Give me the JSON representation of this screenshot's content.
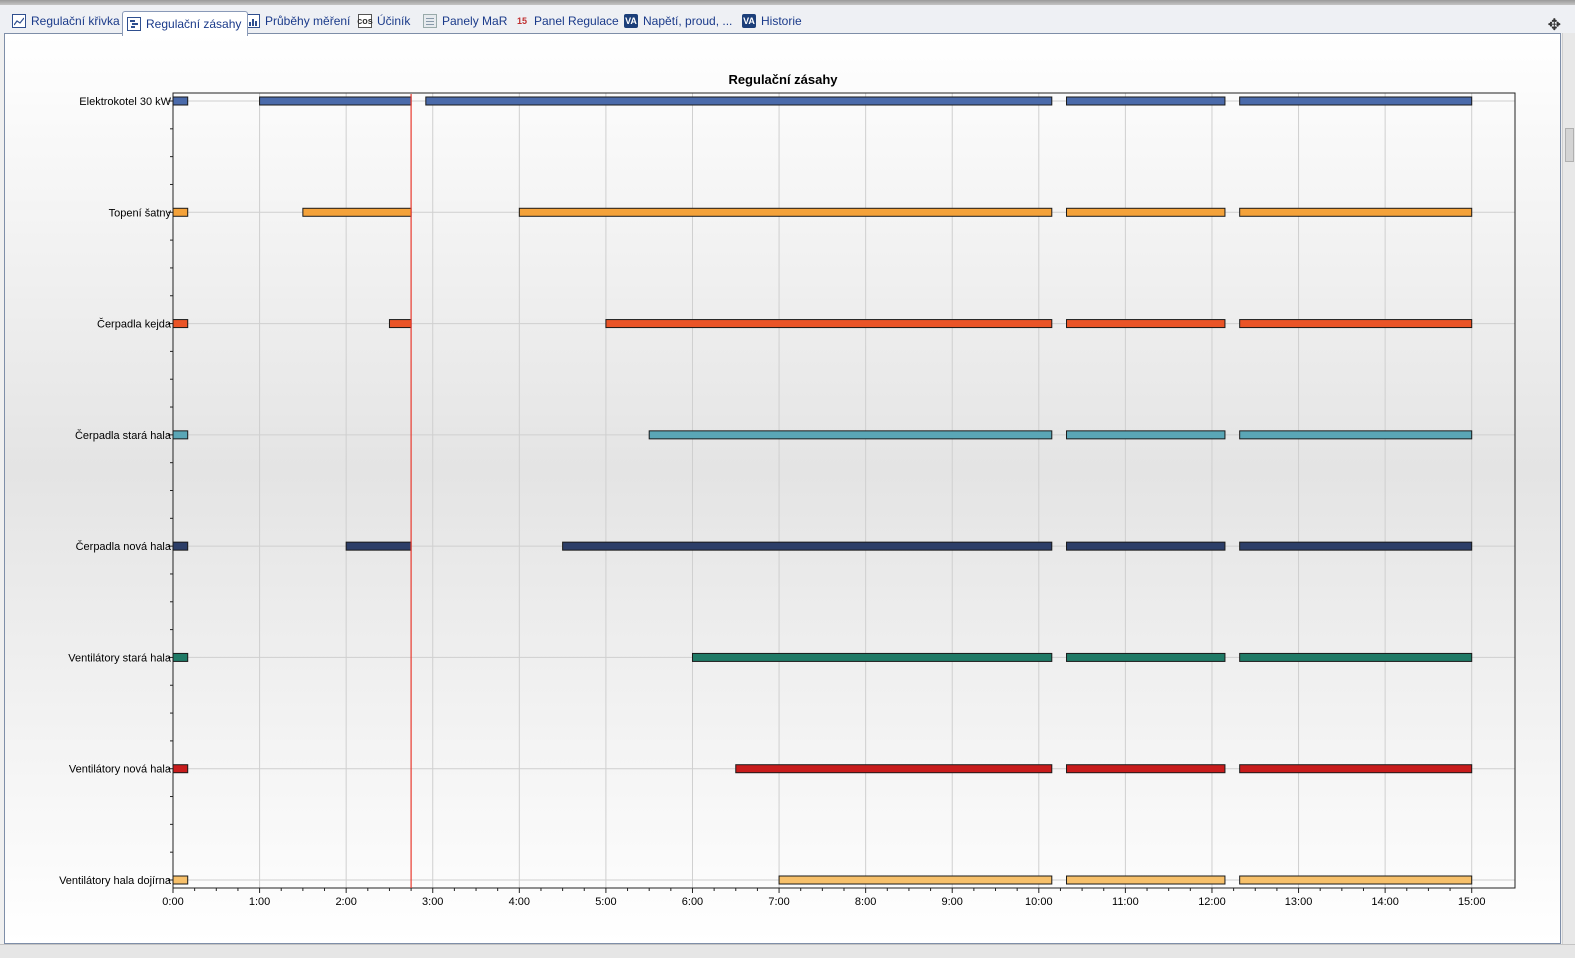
{
  "tabs": [
    {
      "label": "Regulační křivka",
      "icon": "line-chart-icon",
      "active": false
    },
    {
      "label": "Regulační zásahy",
      "icon": "gantt-chart-icon",
      "active": true
    },
    {
      "label": "Průběhy měření",
      "icon": "measurement-chart-icon",
      "active": false
    },
    {
      "label": "Účiník",
      "icon": "cos-phi-icon",
      "active": false
    },
    {
      "label": "Panely MaR",
      "icon": "panel-icon",
      "active": false
    },
    {
      "label": "Panel Regulace",
      "icon": "number-15-icon",
      "active": false
    },
    {
      "label": "Napětí, proud, ...",
      "icon": "va-icon",
      "active": false
    },
    {
      "label": "Historie",
      "icon": "va-icon",
      "active": false
    }
  ],
  "chart_data": {
    "type": "gantt",
    "title": "Regulační zásahy",
    "x_unit": "hours",
    "xlim": [
      0,
      15.5
    ],
    "x_ticks": [
      "0:00",
      "1:00",
      "2:00",
      "3:00",
      "4:00",
      "5:00",
      "6:00",
      "7:00",
      "8:00",
      "9:00",
      "10:00",
      "11:00",
      "12:00",
      "13:00",
      "14:00",
      "15:00"
    ],
    "current_time_marker": 2.75,
    "marker_color": "#e83a2e",
    "grid": true,
    "categories": [
      "Elektrokotel 30 kW",
      "Topení šatny",
      "Čerpadla kejda",
      "Čerpadla stará hala",
      "Čerpadla nová hala",
      "Ventilátory stará hala",
      "Ventilátory nová hala",
      "Ventilátory hala dojírna"
    ],
    "series": [
      {
        "category": "Elektrokotel 30 kW",
        "color": "#4a6aaa",
        "intervals": [
          [
            0,
            0.17
          ],
          [
            1.0,
            2.75
          ],
          [
            2.92,
            10.15
          ],
          [
            10.32,
            12.15
          ],
          [
            12.32,
            15.0
          ]
        ]
      },
      {
        "category": "Topení šatny",
        "color": "#f4a23a",
        "intervals": [
          [
            0,
            0.17
          ],
          [
            1.5,
            2.75
          ],
          [
            4.0,
            10.15
          ],
          [
            10.32,
            12.15
          ],
          [
            12.32,
            15.0
          ]
        ]
      },
      {
        "category": "Čerpadla kejda",
        "color": "#ea5427",
        "intervals": [
          [
            0,
            0.17
          ],
          [
            2.5,
            2.75
          ],
          [
            5.0,
            10.15
          ],
          [
            10.32,
            12.15
          ],
          [
            12.32,
            15.0
          ]
        ]
      },
      {
        "category": "Čerpadla stará hala",
        "color": "#5aa6b6",
        "intervals": [
          [
            0,
            0.17
          ],
          [
            5.5,
            10.15
          ],
          [
            10.32,
            12.15
          ],
          [
            12.32,
            15.0
          ]
        ]
      },
      {
        "category": "Čerpadla nová hala",
        "color": "#2c3e68",
        "intervals": [
          [
            0,
            0.17
          ],
          [
            2.0,
            2.75
          ],
          [
            4.5,
            10.15
          ],
          [
            10.32,
            12.15
          ],
          [
            12.32,
            15.0
          ]
        ]
      },
      {
        "category": "Ventilátory stará hala",
        "color": "#1f7a66",
        "intervals": [
          [
            0,
            0.17
          ],
          [
            6.0,
            10.15
          ],
          [
            10.32,
            12.15
          ],
          [
            12.32,
            15.0
          ]
        ]
      },
      {
        "category": "Ventilátory nová hala",
        "color": "#c81c1c",
        "intervals": [
          [
            0,
            0.17
          ],
          [
            6.5,
            10.15
          ],
          [
            10.32,
            12.15
          ],
          [
            12.32,
            15.0
          ]
        ]
      },
      {
        "category": "Ventilátory hala dojírna",
        "color": "#f7c06a",
        "intervals": [
          [
            0,
            0.17
          ],
          [
            7.0,
            10.15
          ],
          [
            10.32,
            12.15
          ],
          [
            12.32,
            15.0
          ]
        ]
      }
    ]
  }
}
